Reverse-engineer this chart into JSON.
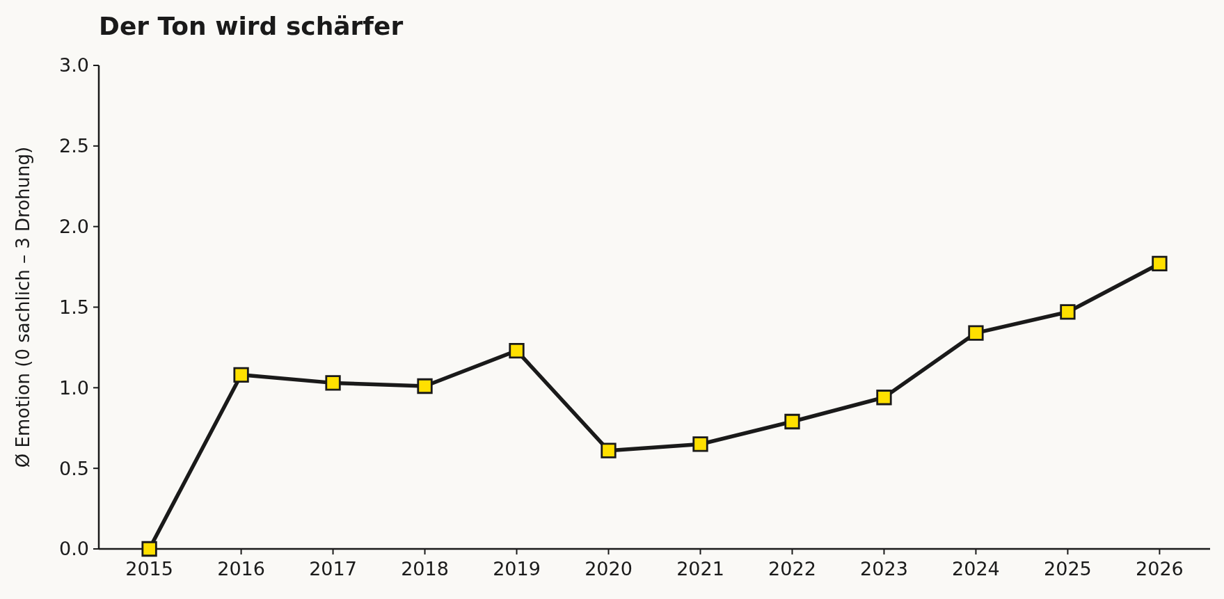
{
  "chart_data": {
    "type": "line",
    "title": "Der Ton wird schärfer",
    "ylabel": "Ø Emotion (0 sachlich – 3 Drohung)",
    "categories": [
      "2015",
      "2016",
      "2017",
      "2018",
      "2019",
      "2020",
      "2021",
      "2022",
      "2023",
      "2024",
      "2025",
      "2026"
    ],
    "series": [
      {
        "color": "#1a1a1a",
        "colors": [
          "#ffe000",
          "#ffe000",
          "#ffe000",
          "#ffe000",
          "#ffe000",
          "#ffe000",
          "#ffe000",
          "#ffe000",
          "#ffe000",
          "#ffe000",
          "#ffe000",
          "#ffe000"
        ],
        "values": [
          0,
          1.08,
          1.03,
          1.01,
          1.23,
          0.61,
          0.65,
          0.79,
          0.94,
          1.34,
          1.47,
          1.77
        ]
      }
    ],
    "ylim": [
      0,
      3
    ],
    "yticks": [
      {
        "value": 0,
        "label": "0.0"
      },
      {
        "value": 0.5,
        "label": "0.5"
      },
      {
        "value": 1,
        "label": "1.0"
      },
      {
        "value": 1.5,
        "label": "1.5"
      },
      {
        "value": 2,
        "label": "2.0"
      },
      {
        "value": 2.5,
        "label": "2.5"
      },
      {
        "value": 3,
        "label": "3.0"
      }
    ],
    "grid": false,
    "marker": "square",
    "line_style": "solid"
  }
}
